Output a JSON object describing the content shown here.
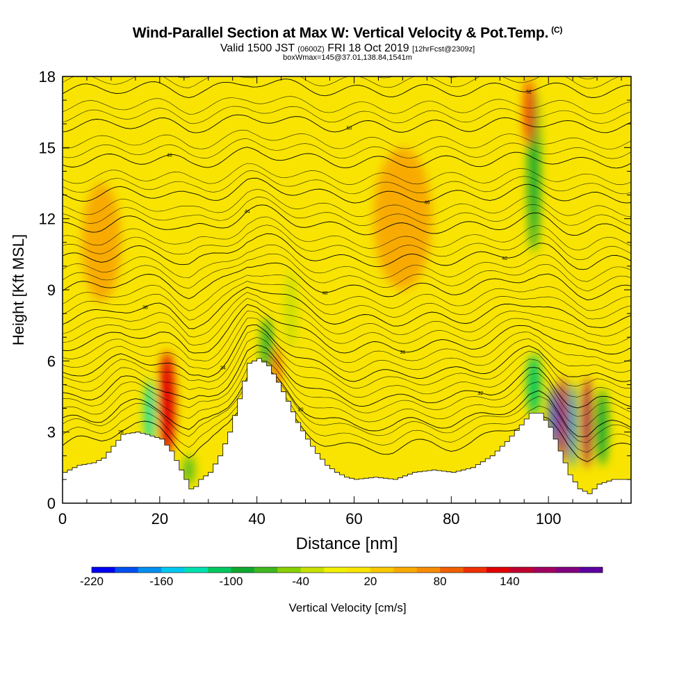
{
  "header": {
    "title": "Wind-Parallel Section at Max W: Vertical Velocity & Pot.Temp.",
    "title_mark": "(C)",
    "valid_prefix": "Valid 1500 JST",
    "valid_utc": "(0600Z)",
    "valid_date": "FRI 18 Oct 2019",
    "forecast_tag": "[12hrFcst@2309z]",
    "box_info": "boxWmax=145@37.01,138.84,1541m"
  },
  "chart_data": {
    "type": "heatmap",
    "xlabel": "Distance [nm]",
    "ylabel": "Height [Kft MSL]",
    "xlim": [
      0,
      117
    ],
    "ylim": [
      0,
      18
    ],
    "x_ticks": [
      0,
      20,
      40,
      60,
      80,
      100
    ],
    "y_ticks": [
      0,
      3,
      6,
      9,
      12,
      15,
      18
    ],
    "background_color": "#f8e400",
    "terrain_color": "#ffffff",
    "terrain_profile": [
      [
        0,
        1.3
      ],
      [
        3,
        1.6
      ],
      [
        6,
        1.7
      ],
      [
        8,
        1.9
      ],
      [
        10,
        2.4
      ],
      [
        12,
        2.9
      ],
      [
        15,
        3.0
      ],
      [
        17,
        2.9
      ],
      [
        20,
        2.7
      ],
      [
        22,
        2.2
      ],
      [
        24,
        1.4
      ],
      [
        25,
        1.0
      ],
      [
        26,
        0.6
      ],
      [
        27,
        0.7
      ],
      [
        28,
        1.0
      ],
      [
        30,
        1.3
      ],
      [
        32,
        2.0
      ],
      [
        34,
        3.0
      ],
      [
        36,
        4.4
      ],
      [
        38,
        5.9
      ],
      [
        40,
        6.1
      ],
      [
        42,
        5.8
      ],
      [
        44,
        5.1
      ],
      [
        46,
        4.3
      ],
      [
        48,
        3.4
      ],
      [
        50,
        2.7
      ],
      [
        52,
        2.1
      ],
      [
        54,
        1.6
      ],
      [
        56,
        1.3
      ],
      [
        58,
        1.1
      ],
      [
        60,
        1.0
      ],
      [
        64,
        1.1
      ],
      [
        68,
        1.0
      ],
      [
        72,
        1.3
      ],
      [
        76,
        1.4
      ],
      [
        80,
        1.3
      ],
      [
        84,
        1.5
      ],
      [
        88,
        2.0
      ],
      [
        91,
        2.6
      ],
      [
        94,
        3.3
      ],
      [
        96,
        3.8
      ],
      [
        98,
        3.8
      ],
      [
        100,
        3.2
      ],
      [
        102,
        2.2
      ],
      [
        104,
        1.2
      ],
      [
        106,
        0.6
      ],
      [
        108,
        0.4
      ],
      [
        110,
        0.8
      ],
      [
        113,
        1.0
      ],
      [
        117,
        1.0
      ]
    ],
    "theta_contour_levels": [
      {
        "label": "28",
        "base": 1.8
      },
      {
        "label": "30",
        "base": 2.8
      },
      {
        "label": "32",
        "base": 3.9
      },
      {
        "label": "34",
        "base": 5.0
      },
      {
        "label": "36",
        "base": 6.2
      },
      {
        "label": "38",
        "base": 7.4
      },
      {
        "label": "40",
        "base": 8.7
      },
      {
        "label": "42",
        "base": 10.0
      },
      {
        "label": "44",
        "base": 11.4
      },
      {
        "label": "46",
        "base": 12.8
      },
      {
        "label": "48",
        "base": 14.3
      },
      {
        "label": "50",
        "base": 15.8
      },
      {
        "label": "52",
        "base": 17.3
      }
    ],
    "velocity_features": [
      {
        "x": 18,
        "y": 3.8,
        "w": -150,
        "rx": 1.0,
        "ry": 1.4
      },
      {
        "x": 21.5,
        "y": 4.2,
        "w": 110,
        "rx": 1.6,
        "ry": 2.2
      },
      {
        "x": 26,
        "y": 1.4,
        "w": -80,
        "rx": 1.0,
        "ry": 0.6
      },
      {
        "x": 42,
        "y": 6.6,
        "w": -110,
        "rx": 1.0,
        "ry": 1.2
      },
      {
        "x": 44,
        "y": 5.6,
        "w": 90,
        "rx": 0.6,
        "ry": 1.0
      },
      {
        "x": 47,
        "y": 8.2,
        "w": -50,
        "rx": 1.2,
        "ry": 1.6
      },
      {
        "x": 97,
        "y": 14.0,
        "w": -110,
        "rx": 1.2,
        "ry": 3.4
      },
      {
        "x": 96,
        "y": 16.5,
        "w": 90,
        "rx": 1.0,
        "ry": 1.4
      },
      {
        "x": 97,
        "y": 5.0,
        "w": -120,
        "rx": 1.4,
        "ry": 1.3
      },
      {
        "x": 101,
        "y": 3.6,
        "w": -200,
        "rx": 0.8,
        "ry": 1.4
      },
      {
        "x": 103,
        "y": 3.5,
        "w": 160,
        "rx": 0.9,
        "ry": 1.8
      },
      {
        "x": 105,
        "y": 3.3,
        "w": -180,
        "rx": 0.8,
        "ry": 1.8
      },
      {
        "x": 108,
        "y": 3.4,
        "w": 160,
        "rx": 0.9,
        "ry": 1.9
      },
      {
        "x": 111,
        "y": 3.2,
        "w": -100,
        "rx": 1.2,
        "ry": 1.6
      },
      {
        "x": 8,
        "y": 11,
        "w": 40,
        "rx": 4.0,
        "ry": 2.5
      },
      {
        "x": 70,
        "y": 12,
        "w": 35,
        "rx": 6.0,
        "ry": 3.0
      }
    ],
    "colorbar": {
      "label": "Vertical Velocity [cm/s]",
      "tick_labels": [
        "-220",
        "-160",
        "-100",
        "-40",
        "20",
        "80",
        "140"
      ],
      "colors": [
        "#0000f0",
        "#0050f0",
        "#0090f0",
        "#00c8f0",
        "#00e0b0",
        "#00c860",
        "#10a830",
        "#40b820",
        "#88d000",
        "#c8e000",
        "#f0f000",
        "#f8e400",
        "#f8c800",
        "#f8aa00",
        "#f88c00",
        "#f06000",
        "#f03000",
        "#e00000",
        "#c00030",
        "#a00060",
        "#800080",
        "#5c00a0"
      ]
    }
  }
}
